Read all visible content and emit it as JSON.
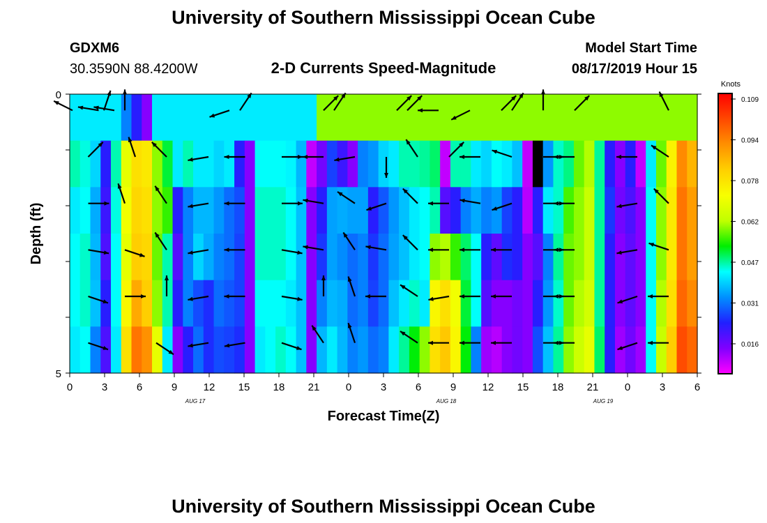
{
  "chart_data": {
    "type": "heatmap",
    "title": "University of Southern Mississippi Ocean Cube",
    "footer_title": "University of Southern Mississippi Ocean Cube",
    "station": "GDXM6",
    "coords": "30.3590N 88.4200W",
    "subtitle": "2-D Currents Speed-Magnitude",
    "model_label": "Model Start Time",
    "model_time": "08/17/2019 Hour 15",
    "xlabel": "Forecast Time(Z)",
    "ylabel": "Depth (ft)",
    "y_ticks": [
      "0",
      "5"
    ],
    "x_ticks": [
      "0",
      "3",
      "6",
      "9",
      "12",
      "15",
      "18",
      "21",
      "0",
      "3",
      "6",
      "9",
      "12",
      "15",
      "18",
      "21",
      "0",
      "3",
      "6"
    ],
    "date_labels": [
      {
        "text": "AUG 17",
        "hour": 12
      },
      {
        "text": "AUG 18",
        "hour": 36
      },
      {
        "text": "AUG 19",
        "hour": 51
      }
    ],
    "colorbar": {
      "unit": "Knots",
      "ticks": [
        "0.109",
        "0.094",
        "0.078",
        "0.062",
        "0.047",
        "0.031",
        "0.016"
      ],
      "colors": [
        "#ff0000",
        "#ff4800",
        "#ff9000",
        "#ffd000",
        "#f8ff00",
        "#c0ff00",
        "#00ee00",
        "#00ffff",
        "#0090ff",
        "#2020ff",
        "#8000ff",
        "#ff00ff"
      ]
    },
    "hours": [
      0,
      1,
      2,
      3,
      4,
      5,
      6,
      7,
      8,
      9,
      10,
      11,
      12,
      13,
      14,
      15,
      16,
      17,
      18,
      19,
      20,
      21,
      22,
      23,
      24,
      25,
      26,
      27,
      28,
      29,
      30,
      31,
      32,
      33,
      34,
      35,
      36,
      37,
      38,
      39,
      40,
      41,
      42,
      43,
      44,
      45,
      46,
      47,
      48,
      49,
      50,
      51,
      52,
      53,
      54,
      55,
      56,
      57,
      58,
      59,
      60
    ],
    "layers": [
      "0",
      "1",
      "2",
      "3",
      "4",
      "5"
    ],
    "speeds": [
      [
        0.04,
        0.04,
        0.04,
        0.04,
        0.04,
        0.03,
        0.02,
        0.01,
        0.04,
        0.04,
        0.04,
        0.04,
        0.04,
        0.04,
        0.04,
        0.04,
        0.04,
        0.04,
        0.04,
        0.04,
        0.04,
        0.04,
        0.04,
        0.04,
        0.06,
        0.06,
        0.06,
        0.06,
        0.06,
        0.06,
        0.06,
        0.06,
        0.06,
        0.06,
        0.06,
        0.06,
        0.06,
        0.06,
        0.06,
        0.06,
        0.06,
        0.06,
        0.06,
        0.06,
        0.06,
        0.06,
        0.06,
        0.06,
        0.06,
        0.06,
        0.06,
        0.06,
        0.06,
        0.06,
        0.06,
        0.06,
        0.06,
        0.06,
        0.06,
        0.06,
        0.06
      ],
      [
        0.045,
        0.043,
        0.038,
        0.02,
        0.045,
        0.07,
        0.08,
        0.078,
        0.06,
        0.05,
        0.04,
        0.045,
        0.04,
        0.04,
        0.038,
        0.04,
        0.02,
        0.01,
        0.042,
        0.042,
        0.042,
        0.041,
        0.035,
        0.005,
        0.012,
        0.024,
        0.018,
        0.01,
        0.03,
        0.032,
        0.038,
        0.04,
        0.045,
        0.045,
        0.046,
        0.048,
        0.005,
        0.045,
        0.045,
        0.04,
        0.038,
        0.042,
        0.04,
        0.036,
        0.005,
        0.0001,
        0.032,
        0.044,
        0.047,
        0.058,
        0.062,
        0.046,
        0.02,
        0.01,
        0.02,
        0.005,
        0.04,
        0.058,
        0.076,
        0.095,
        0.088
      ],
      [
        0.04,
        0.042,
        0.034,
        0.018,
        0.043,
        0.072,
        0.082,
        0.08,
        0.06,
        0.055,
        0.02,
        0.03,
        0.035,
        0.035,
        0.032,
        0.028,
        0.025,
        0.01,
        0.044,
        0.044,
        0.044,
        0.042,
        0.036,
        0.01,
        0.02,
        0.033,
        0.034,
        0.033,
        0.033,
        0.02,
        0.026,
        0.032,
        0.036,
        0.04,
        0.042,
        0.045,
        0.015,
        0.02,
        0.03,
        0.034,
        0.03,
        0.032,
        0.024,
        0.02,
        0.006,
        0.02,
        0.04,
        0.044,
        0.056,
        0.06,
        0.064,
        0.046,
        0.023,
        0.012,
        0.016,
        0.01,
        0.042,
        0.06,
        0.078,
        0.098,
        0.092
      ],
      [
        0.042,
        0.044,
        0.035,
        0.016,
        0.042,
        0.07,
        0.084,
        0.082,
        0.058,
        0.045,
        0.015,
        0.03,
        0.038,
        0.034,
        0.03,
        0.028,
        0.024,
        0.01,
        0.044,
        0.044,
        0.044,
        0.042,
        0.036,
        0.01,
        0.023,
        0.033,
        0.031,
        0.028,
        0.03,
        0.023,
        0.028,
        0.033,
        0.036,
        0.04,
        0.042,
        0.06,
        0.062,
        0.055,
        0.048,
        0.042,
        0.02,
        0.014,
        0.022,
        0.02,
        0.01,
        0.015,
        0.03,
        0.046,
        0.058,
        0.06,
        0.064,
        0.046,
        0.02,
        0.01,
        0.014,
        0.01,
        0.042,
        0.06,
        0.078,
        0.098,
        0.092
      ],
      [
        0.042,
        0.044,
        0.036,
        0.02,
        0.042,
        0.075,
        0.09,
        0.084,
        0.06,
        0.045,
        0.02,
        0.03,
        0.025,
        0.022,
        0.028,
        0.026,
        0.024,
        0.01,
        0.042,
        0.042,
        0.042,
        0.04,
        0.036,
        0.01,
        0.03,
        0.035,
        0.034,
        0.028,
        0.03,
        0.024,
        0.028,
        0.036,
        0.04,
        0.044,
        0.04,
        0.075,
        0.08,
        0.072,
        0.05,
        0.042,
        0.015,
        0.01,
        0.01,
        0.012,
        0.01,
        0.02,
        0.032,
        0.044,
        0.058,
        0.062,
        0.066,
        0.046,
        0.02,
        0.01,
        0.014,
        0.01,
        0.042,
        0.062,
        0.08,
        0.1,
        0.095
      ],
      [
        0.04,
        0.042,
        0.03,
        0.016,
        0.04,
        0.08,
        0.098,
        0.094,
        0.07,
        0.04,
        0.01,
        0.02,
        0.028,
        0.022,
        0.025,
        0.024,
        0.022,
        0.01,
        0.04,
        0.042,
        0.044,
        0.042,
        0.036,
        0.01,
        0.035,
        0.04,
        0.035,
        0.03,
        0.032,
        0.028,
        0.03,
        0.04,
        0.046,
        0.052,
        0.06,
        0.08,
        0.085,
        0.075,
        0.052,
        0.03,
        0.008,
        0.006,
        0.01,
        0.012,
        0.01,
        0.025,
        0.036,
        0.046,
        0.06,
        0.065,
        0.07,
        0.048,
        0.02,
        0.008,
        0.012,
        0.008,
        0.042,
        0.064,
        0.084,
        0.104,
        0.1
      ]
    ],
    "vectors": [
      [
        0,
        0,
        -2,
        -1
      ],
      [
        2.5,
        0,
        -3,
        -0.5
      ],
      [
        3,
        0,
        1,
        -3
      ],
      [
        4,
        0,
        -3,
        -0.5
      ],
      [
        5,
        0,
        0,
        -3
      ],
      [
        15,
        0,
        -3,
        1
      ],
      [
        16,
        0,
        2,
        -3
      ],
      [
        24,
        0,
        1,
        -1
      ],
      [
        25,
        0,
        2,
        -3
      ],
      [
        31,
        0,
        1,
        -1
      ],
      [
        32,
        0,
        1,
        -1
      ],
      [
        35,
        0,
        -3,
        0
      ],
      [
        38,
        0,
        -2,
        1
      ],
      [
        41,
        0,
        2,
        -2
      ],
      [
        42,
        0,
        2,
        -3
      ],
      [
        45,
        0,
        0,
        -3
      ],
      [
        48,
        0,
        1,
        -1
      ],
      [
        57,
        0,
        -1,
        -2
      ],
      [
        1.5,
        1,
        1,
        -1
      ],
      [
        6,
        1,
        -1,
        -3
      ],
      [
        9,
        1,
        -2,
        -2
      ],
      [
        13,
        1,
        -3,
        0.5
      ],
      [
        16.5,
        1,
        -3,
        0
      ],
      [
        20,
        1,
        3,
        0
      ],
      [
        24,
        1,
        -2,
        0
      ],
      [
        27,
        1,
        -3,
        0.5
      ],
      [
        30,
        1,
        0,
        3
      ],
      [
        33,
        1,
        -2,
        -3
      ],
      [
        36,
        1,
        3,
        -3
      ],
      [
        39,
        1,
        -3,
        0
      ],
      [
        42,
        1,
        -3,
        -1
      ],
      [
        45,
        1,
        3,
        0
      ],
      [
        48,
        1,
        -3,
        0
      ],
      [
        54,
        1,
        -3,
        0
      ],
      [
        57,
        1,
        -3,
        -2
      ],
      [
        1.5,
        2,
        3,
        0
      ],
      [
        5,
        2,
        -1,
        -3
      ],
      [
        9,
        2,
        -2,
        -3
      ],
      [
        13,
        2,
        -3,
        0.5
      ],
      [
        16.5,
        2,
        -3,
        0
      ],
      [
        20,
        2,
        3,
        0
      ],
      [
        24,
        2,
        -3,
        -0.5
      ],
      [
        27,
        2,
        -3,
        -2
      ],
      [
        30,
        2,
        -3,
        1
      ],
      [
        33,
        2,
        -3,
        -3
      ],
      [
        36,
        2,
        -3,
        0
      ],
      [
        39,
        2,
        -3,
        -0.5
      ],
      [
        42,
        2,
        -3,
        1
      ],
      [
        45,
        2,
        3,
        0
      ],
      [
        48,
        2,
        -3,
        0
      ],
      [
        54,
        2,
        -3,
        0.5
      ],
      [
        57,
        2,
        -3,
        -3
      ],
      [
        1.5,
        3,
        3,
        0.5
      ],
      [
        5,
        3,
        3,
        1
      ],
      [
        9,
        3,
        -2,
        -3
      ],
      [
        13,
        3,
        -3,
        0.5
      ],
      [
        16.5,
        3,
        -3,
        0
      ],
      [
        20,
        3,
        3,
        0.5
      ],
      [
        24,
        3,
        -3,
        -0.5
      ],
      [
        27,
        3,
        -2,
        -3
      ],
      [
        30,
        3,
        -3,
        -0.5
      ],
      [
        33,
        3,
        -3,
        -3
      ],
      [
        36,
        3,
        -3,
        0
      ],
      [
        39,
        3,
        -3,
        0
      ],
      [
        42,
        3,
        -3,
        0
      ],
      [
        45,
        3,
        3,
        0
      ],
      [
        48,
        3,
        -3,
        0
      ],
      [
        54,
        3,
        -3,
        0.5
      ],
      [
        57,
        3,
        -3,
        -1
      ],
      [
        1.5,
        4,
        3,
        1
      ],
      [
        5,
        4,
        3,
        0
      ],
      [
        9,
        4,
        0,
        -3
      ],
      [
        13,
        4,
        -3,
        0.5
      ],
      [
        16.5,
        4,
        -3,
        0
      ],
      [
        20,
        4,
        3,
        0.5
      ],
      [
        24,
        4,
        0,
        -3
      ],
      [
        27,
        4,
        -1,
        -3
      ],
      [
        30,
        4,
        -3,
        0
      ],
      [
        33,
        4,
        -3,
        -2
      ],
      [
        36,
        4,
        -3,
        0.5
      ],
      [
        39,
        4,
        -3,
        0
      ],
      [
        42,
        4,
        -3,
        0
      ],
      [
        45,
        4,
        3,
        0
      ],
      [
        48,
        4,
        -3,
        0
      ],
      [
        54,
        4,
        -3,
        1
      ],
      [
        57,
        4,
        -3,
        0
      ],
      [
        1.5,
        5,
        3,
        1
      ],
      [
        8,
        5,
        3,
        2
      ],
      [
        13,
        5,
        -3,
        0.5
      ],
      [
        16.5,
        5,
        -3,
        0.5
      ],
      [
        20,
        5,
        3,
        1
      ],
      [
        24,
        5,
        -2,
        -3
      ],
      [
        27,
        5,
        -1,
        -3
      ],
      [
        33,
        5,
        -3,
        -2
      ],
      [
        36,
        5,
        -3,
        0
      ],
      [
        39,
        5,
        -3,
        0
      ],
      [
        42,
        5,
        -3,
        0
      ],
      [
        45,
        5,
        3,
        0
      ],
      [
        48,
        5,
        -3,
        0
      ],
      [
        54,
        5,
        -3,
        1
      ],
      [
        57,
        5,
        -3,
        0
      ]
    ]
  }
}
